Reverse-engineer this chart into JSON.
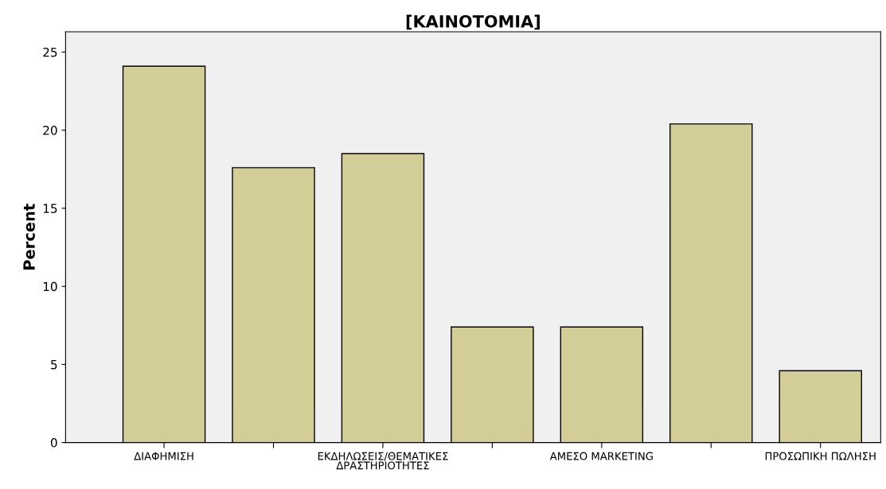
{
  "chart_data": {
    "type": "bar",
    "title": "[ΚΑΙΝΟΤΟΜΙΑ]",
    "ylabel": "Percent",
    "categories": [
      "ΔΙΑΦΗΜΙΣΗ",
      null,
      "ΕΚΔΗΛΩΣΕΙΣ/ΘΕΜΑΤΙΚΕΣ\nΔΡΑΣΤΗΡΙΟΤΗΤΕΣ",
      null,
      "ΑΜΕΣΟ MARKETING",
      null,
      "ΠΡΟΣΩΠΙΚΗ ΠΩΛΗΣΗ"
    ],
    "values": [
      24.1,
      17.6,
      18.5,
      7.4,
      7.4,
      20.4,
      4.6
    ],
    "color": "#d3ce97",
    "ylim": [
      0,
      26.3
    ],
    "yticks": [
      0,
      5,
      10,
      15,
      20,
      25
    ],
    "grid": false,
    "legend": false
  }
}
